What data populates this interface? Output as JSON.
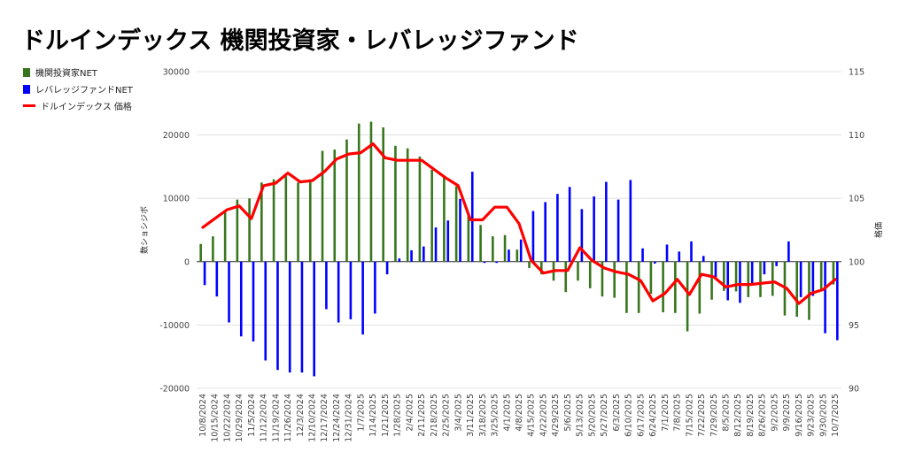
{
  "title": "ドルインデックス 機関投資家・レバレッジファンド",
  "legend": [
    {
      "label": "機関投資家NET",
      "color": "#38761d",
      "kind": "bar"
    },
    {
      "label": "レバレッジファンドNET",
      "color": "#0000ff",
      "kind": "bar"
    },
    {
      "label": "ドルインデックス 価格",
      "color": "#ff0000",
      "kind": "line"
    }
  ],
  "chart_data": {
    "type": "bar",
    "title": "ドルインデックス 機関投資家・レバレッジファンド",
    "ylabel_left": "数ショシジボ",
    "ylabel_right": "格価",
    "ylim_left": [
      -20000,
      30000
    ],
    "yticks_left": [
      30000,
      20000,
      10000,
      0,
      -10000,
      -20000
    ],
    "ylim_right": [
      90,
      115
    ],
    "yticks_right": [
      115,
      110,
      105,
      100,
      95,
      90
    ],
    "x_tick_labels": [
      "10/8/2024",
      "10/15/2024",
      "10/22/2024",
      "10/29/2024",
      "11/5/2024",
      "11/12/2024",
      "11/19/2024",
      "11/26/2024",
      "12/3/2024",
      "12/10/2024",
      "12/17/2024",
      "12/24/2024",
      "12/31/2024",
      "1/7/2025",
      "1/14/2025",
      "1/21/2025",
      "1/28/2025",
      "2/4/2025",
      "2/11/2025",
      "2/18/2025",
      "2/25/2025",
      "3/4/2025",
      "3/11/2025",
      "3/18/2025",
      "3/25/2025",
      "4/1/2025",
      "4/8/2025",
      "4/15/2025",
      "4/22/2025",
      "4/29/2025",
      "5/6/2025",
      "5/13/2025",
      "5/20/2025",
      "5/27/2025",
      "6/3/2025",
      "6/10/2025",
      "6/17/2025",
      "6/24/2025",
      "7/1/2025",
      "7/8/2025",
      "7/15/2025",
      "7/22/2025",
      "7/29/2025",
      "8/5/2025",
      "8/12/2025",
      "8/19/2025",
      "8/26/2025",
      "9/2/2025",
      "9/9/2025",
      "9/16/2025",
      "9/23/2025",
      "9/30/2025",
      "10/7/2025"
    ],
    "series": [
      {
        "name": "機関投資家NET",
        "type": "bar",
        "axis": "left",
        "values": [
          2800,
          4000,
          7900,
          9800,
          10000,
          12500,
          13000,
          13500,
          12500,
          13000,
          17500,
          17700,
          19300,
          21800,
          22100,
          21200,
          18300,
          17900,
          16600,
          14500,
          13300,
          11900,
          7500,
          5800,
          4000,
          4200,
          1900,
          -1000,
          -2000,
          -3000,
          -4800,
          -3000,
          -4200,
          -5500,
          -5700,
          -8100,
          -8100,
          -5100,
          -8000,
          -8100,
          -11000,
          -8200,
          -6000,
          -4600,
          -4700,
          -5600,
          -5600,
          -5400,
          -8500,
          -8700,
          -9200,
          -4300,
          -3600
        ]
      },
      {
        "name": "レバレッジファンドNET",
        "type": "bar",
        "axis": "left",
        "values": [
          -3700,
          -5500,
          -9600,
          -11800,
          -12600,
          -15600,
          -17100,
          -17500,
          -17500,
          -18100,
          -7500,
          -9600,
          -9100,
          -11500,
          -8200,
          -2000,
          500,
          1800,
          2400,
          5400,
          6500,
          9900,
          14200,
          -200,
          -200,
          1900,
          3500,
          8000,
          9400,
          10700,
          11800,
          8300,
          10300,
          12600,
          9800,
          12900,
          2100,
          -300,
          2700,
          1600,
          3200,
          900,
          -2800,
          -6100,
          -6500,
          -3500,
          -2000,
          -700,
          3200,
          -5600,
          -5400,
          -11300,
          -12400
        ]
      },
      {
        "name": "ドルインデックス 価格",
        "type": "line",
        "axis": "right",
        "values": [
          102.7,
          103.4,
          104.1,
          104.4,
          103.4,
          106.0,
          106.2,
          107.0,
          106.3,
          106.4,
          107.1,
          108.1,
          108.5,
          108.6,
          109.3,
          108.2,
          108.0,
          108.0,
          108.0,
          107.3,
          106.6,
          106.0,
          103.3,
          103.3,
          104.3,
          104.3,
          103.0,
          100.1,
          99.1,
          99.3,
          99.3,
          101.1,
          100.1,
          99.5,
          99.2,
          99.0,
          98.5,
          96.9,
          97.5,
          98.6,
          97.4,
          99.0,
          98.8,
          98.0,
          98.2,
          98.2,
          98.3,
          98.4,
          97.9,
          96.7,
          97.5,
          97.8,
          98.6
        ]
      }
    ],
    "colors": {
      "institutional": "#38761d",
      "leveraged": "#0000ff",
      "price": "#ff0000"
    },
    "grid": true,
    "legend_position": "left"
  }
}
